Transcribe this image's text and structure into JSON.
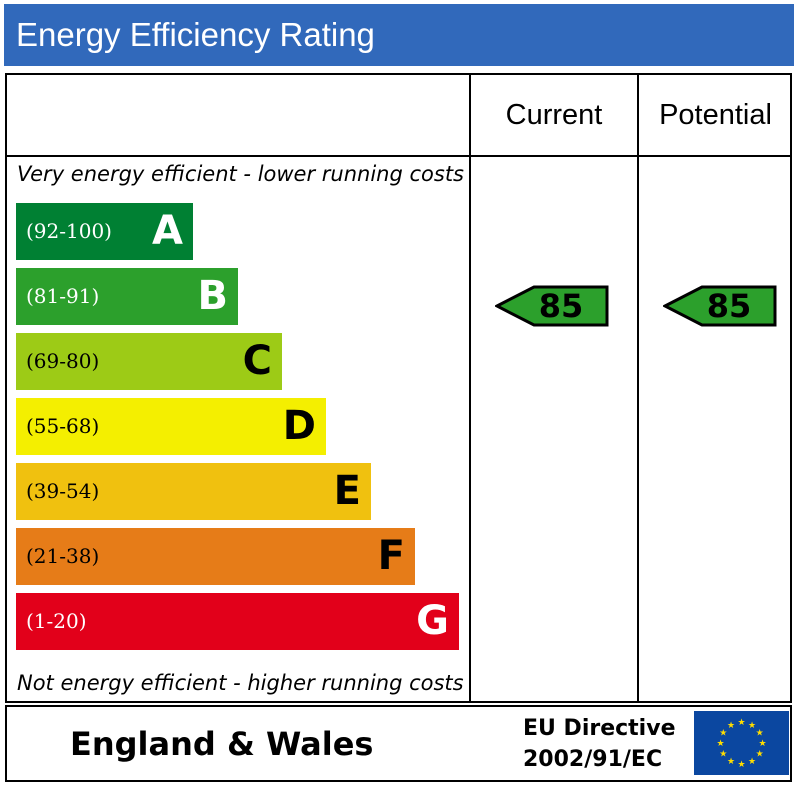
{
  "title": "Energy Efficiency Rating",
  "columns": {
    "current": "Current",
    "potential": "Potential"
  },
  "notes": {
    "top": "Very energy efficient - lower running costs",
    "bottom": "Not energy efficient - higher running costs"
  },
  "footer": {
    "region": "England & Wales",
    "directive_line1": "EU Directive",
    "directive_line2": "2002/91/EC"
  },
  "chart_data": {
    "type": "bar",
    "bands": [
      {
        "letter": "A",
        "range": "(92-100)",
        "color": "#008033",
        "text_color": "#ffffff"
      },
      {
        "letter": "B",
        "range": "(81-91)",
        "color": "#2ca02c",
        "text_color": "#ffffff"
      },
      {
        "letter": "C",
        "range": "(69-80)",
        "color": "#9dcb16",
        "text_color": "#000000"
      },
      {
        "letter": "D",
        "range": "(55-68)",
        "color": "#f4ef00",
        "text_color": "#000000"
      },
      {
        "letter": "E",
        "range": "(39-54)",
        "color": "#f0c10f",
        "text_color": "#000000"
      },
      {
        "letter": "F",
        "range": "(21-38)",
        "color": "#e67c18",
        "text_color": "#000000"
      },
      {
        "letter": "G",
        "range": "(1-20)",
        "color": "#e2001a",
        "text_color": "#ffffff"
      }
    ],
    "current": {
      "value": "85",
      "band": "B",
      "color": "#2ca02c"
    },
    "potential": {
      "value": "85",
      "band": "B",
      "color": "#2ca02c"
    }
  }
}
